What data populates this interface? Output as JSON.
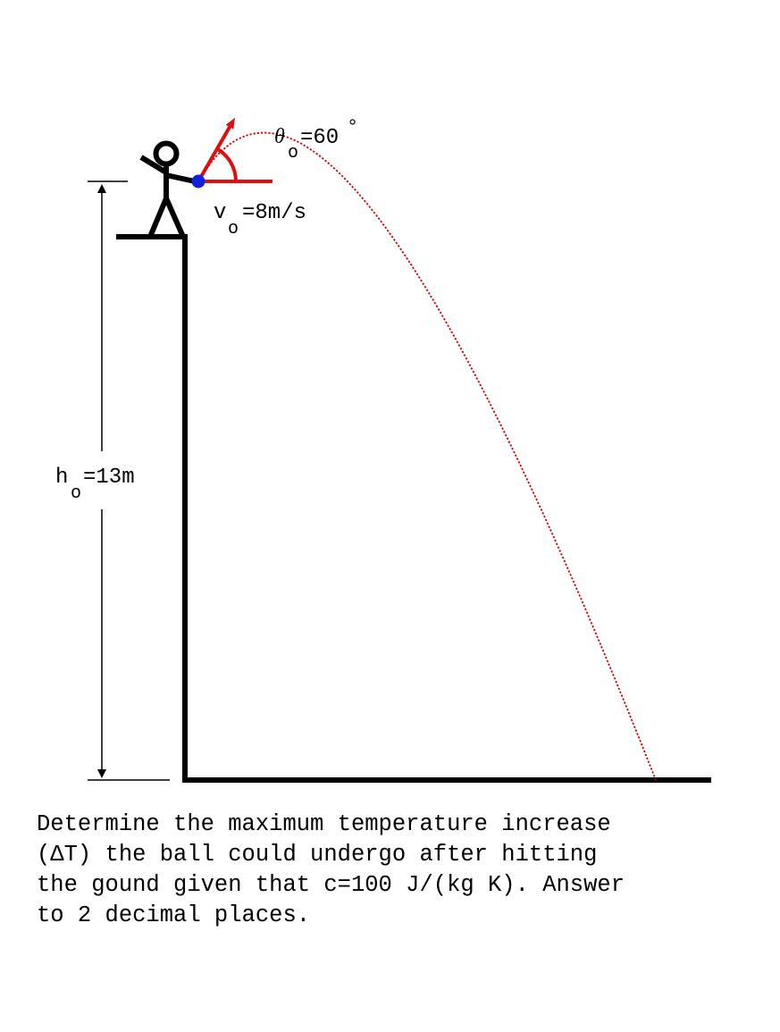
{
  "diagram": {
    "height_label": {
      "symbol": "h",
      "subscript": "o",
      "value": "=13m"
    },
    "velocity_label": {
      "symbol": "v",
      "subscript": "o",
      "value": "=8m/s"
    },
    "angle_label": {
      "symbol": "θ",
      "subscript": "o",
      "value": "=60",
      "unit": "°"
    }
  },
  "question": {
    "lines": [
      "Determine the maximum temperature increase",
      "(ΔT) the ball could undergo after hitting",
      "the gound given that c=100 J/(kg K). Answer",
      "to 2 decimal places."
    ]
  },
  "colors": {
    "ink": "#000000",
    "trajectory": "#d00000",
    "velocity_arrow": "#e01010",
    "ball": "#1020e0"
  }
}
